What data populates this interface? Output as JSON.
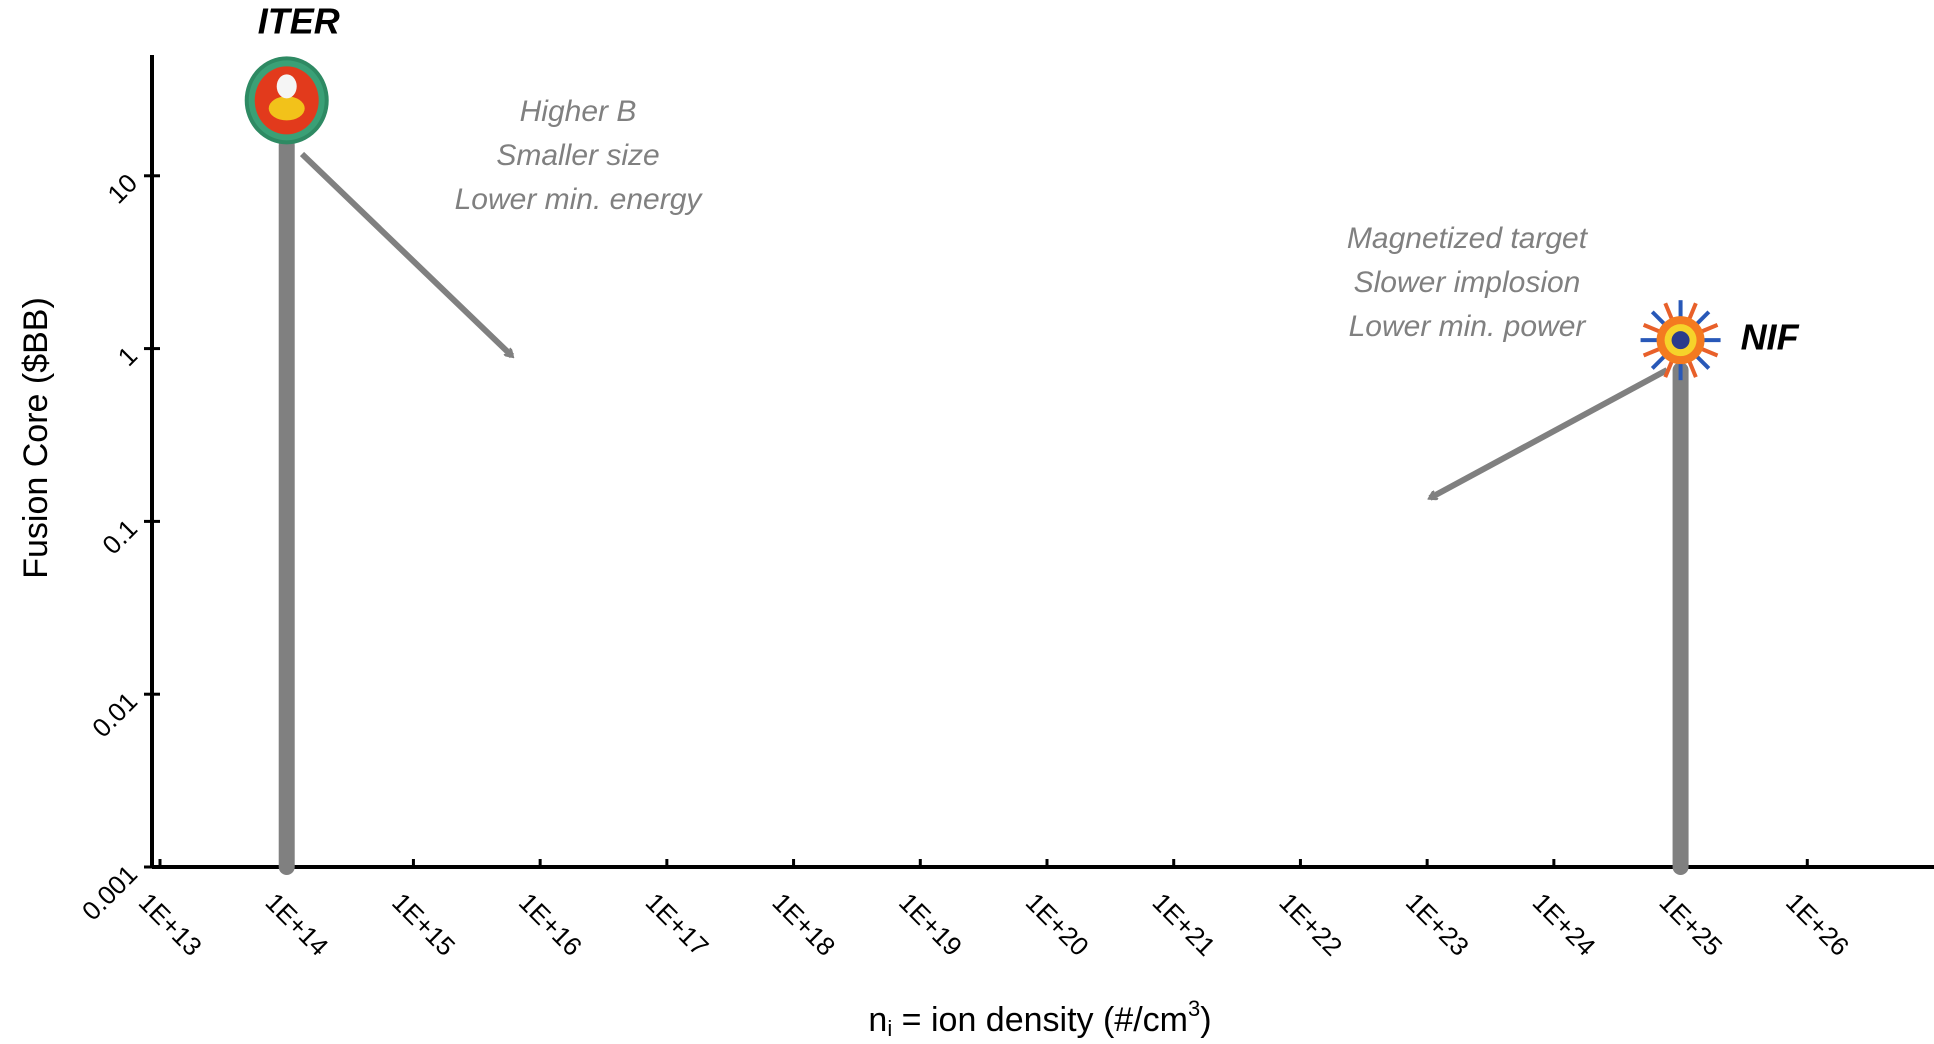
{
  "chart_data": {
    "type": "bar",
    "x": [
      100000000000000.0,
      1e+25
    ],
    "values": [
      15,
      0.75
    ],
    "point_labels": [
      "ITER",
      "NIF"
    ],
    "color": "#808080",
    "xscale": "log",
    "yscale": "log",
    "xlim": [
      10000000000000.0,
      1e+27
    ],
    "ylim": [
      0.001,
      50
    ],
    "xticks": [
      {
        "value": 10000000000000.0,
        "label": "1E+13"
      },
      {
        "value": 100000000000000.0,
        "label": "1E+14"
      },
      {
        "value": 1000000000000000.0,
        "label": "1E+15"
      },
      {
        "value": 1e+16,
        "label": "1E+16"
      },
      {
        "value": 1e+17,
        "label": "1E+17"
      },
      {
        "value": 1e+18,
        "label": "1E+18"
      },
      {
        "value": 1e+19,
        "label": "1E+19"
      },
      {
        "value": 1e+20,
        "label": "1E+20"
      },
      {
        "value": 1e+21,
        "label": "1E+21"
      },
      {
        "value": 1e+22,
        "label": "1E+22"
      },
      {
        "value": 1e+23,
        "label": "1E+23"
      },
      {
        "value": 1e+24,
        "label": "1E+24"
      },
      {
        "value": 1e+25,
        "label": "1E+25"
      },
      {
        "value": 1e+26,
        "label": "1E+26"
      }
    ],
    "yticks": [
      0.001,
      0.01,
      0.1,
      1,
      10
    ],
    "ylabel": "Fusion Core ($BB)",
    "xlabel_parts": [
      "n",
      "i",
      " = ion density (#/cm",
      "3",
      ")"
    ],
    "annotations": [
      {
        "lines": [
          "Higher B",
          "Smaller size",
          "Lower min. energy"
        ]
      },
      {
        "lines": [
          "Magnetized target",
          "Slower implosion",
          "Lower min. power"
        ]
      }
    ]
  }
}
